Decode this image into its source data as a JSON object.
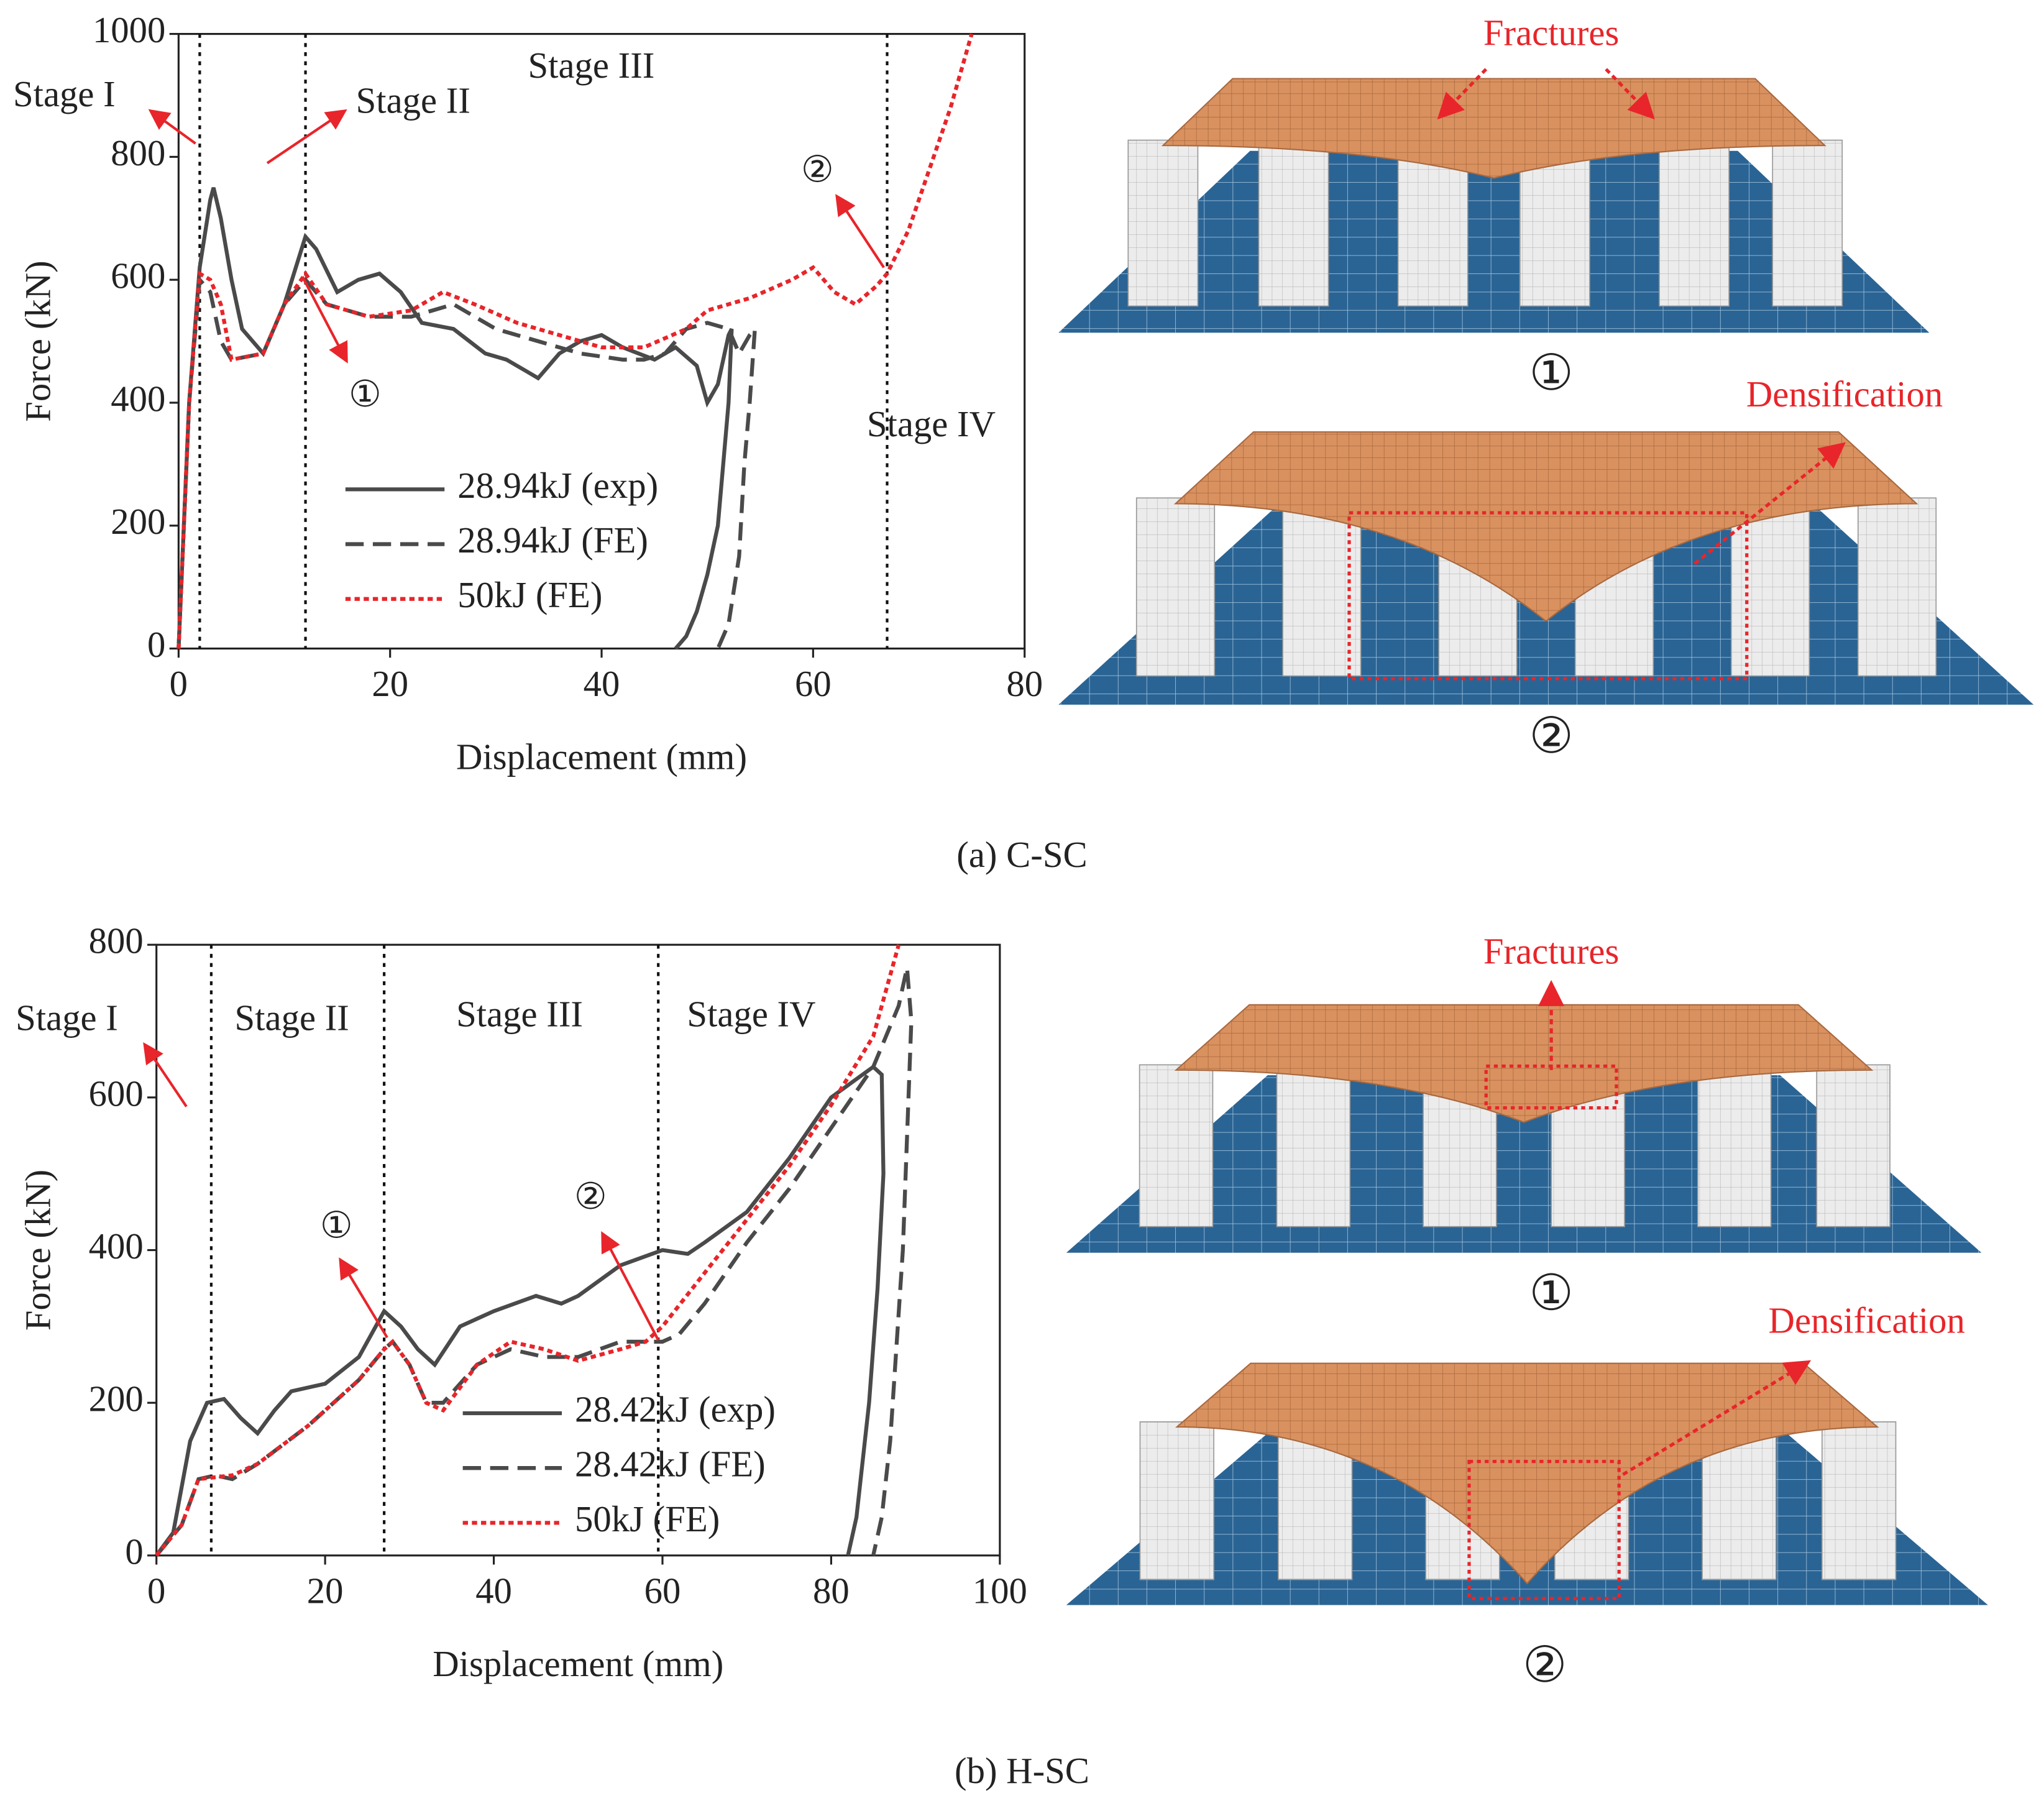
{
  "chart_data": [
    {
      "type": "line",
      "xlabel": "Displacement (mm)",
      "ylabel": "Force (kN)",
      "xlim": [
        0,
        80
      ],
      "ylim": [
        0,
        1000
      ],
      "xticks": [
        0,
        20,
        40,
        60,
        80
      ],
      "yticks": [
        0,
        200,
        400,
        600,
        800,
        1000
      ],
      "stage_lines": [
        2,
        12,
        67
      ],
      "annotations": [
        "Stage I",
        "Stage II",
        "Stage III",
        "Stage IV",
        "①",
        "②"
      ],
      "series": [
        {
          "name": "28.94kJ (exp)",
          "color": "#4a4a4a",
          "dash": "solid",
          "x": [
            0,
            1,
            2,
            3,
            3.3,
            4,
            5,
            6,
            8,
            10,
            12,
            13,
            15,
            17,
            19,
            21,
            23,
            26,
            29,
            31,
            33,
            34,
            36,
            38,
            40,
            42,
            45,
            47,
            49,
            50,
            51,
            52,
            52.3,
            52,
            51.5,
            51,
            50,
            49,
            48,
            47
          ],
          "values": [
            0,
            400,
            620,
            730,
            750,
            700,
            600,
            520,
            480,
            560,
            670,
            650,
            580,
            600,
            610,
            580,
            530,
            520,
            480,
            470,
            450,
            440,
            480,
            500,
            510,
            490,
            470,
            490,
            460,
            400,
            430,
            510,
            520,
            400,
            300,
            200,
            120,
            60,
            20,
            0
          ]
        },
        {
          "name": "28.94kJ (FE)",
          "color": "#4a4a4a",
          "dash": "dashed",
          "x": [
            0,
            1,
            2,
            3,
            4,
            5,
            8,
            10,
            12,
            14,
            18,
            22,
            26,
            30,
            34,
            38,
            42,
            44,
            46,
            48,
            50,
            52,
            53,
            54,
            54.5,
            54,
            53.5,
            53,
            52,
            51
          ],
          "values": [
            0,
            400,
            600,
            580,
            500,
            470,
            480,
            560,
            600,
            560,
            540,
            540,
            560,
            520,
            500,
            480,
            470,
            470,
            480,
            520,
            530,
            520,
            480,
            510,
            520,
            400,
            300,
            150,
            40,
            0
          ]
        },
        {
          "name": "50kJ (FE)",
          "color": "#e8252a",
          "dash": "dotted",
          "x": [
            0,
            1,
            2,
            3,
            4,
            5,
            8,
            10,
            12,
            14,
            18,
            22,
            25,
            28,
            32,
            36,
            40,
            44,
            48,
            50,
            54,
            58,
            60,
            62,
            64,
            66,
            67,
            69,
            71,
            73,
            75
          ],
          "values": [
            0,
            400,
            610,
            600,
            560,
            470,
            480,
            560,
            610,
            560,
            540,
            550,
            580,
            560,
            530,
            510,
            490,
            490,
            520,
            550,
            570,
            600,
            620,
            580,
            560,
            590,
            610,
            680,
            780,
            880,
            1000
          ]
        }
      ]
    },
    {
      "type": "line",
      "xlabel": "Displacement (mm)",
      "ylabel": "Force (kN)",
      "xlim": [
        0,
        100
      ],
      "ylim": [
        0,
        800
      ],
      "xticks": [
        0,
        20,
        40,
        60,
        80,
        100
      ],
      "yticks": [
        0,
        200,
        400,
        600,
        800
      ],
      "stage_lines": [
        6.5,
        27,
        59.5
      ],
      "annotations": [
        "Stage I",
        "Stage II",
        "Stage III",
        "Stage IV",
        "①",
        "②"
      ],
      "series": [
        {
          "name": "28.42kJ (exp)",
          "color": "#4a4a4a",
          "dash": "solid",
          "x": [
            0,
            2,
            4,
            6,
            8,
            10,
            12,
            14,
            16,
            20,
            24,
            27,
            29,
            31,
            33,
            36,
            40,
            45,
            48,
            50,
            55,
            60,
            63,
            65,
            70,
            75,
            80,
            85,
            86,
            86.2,
            85.5,
            84.5,
            83,
            82
          ],
          "values": [
            0,
            30,
            150,
            200,
            205,
            180,
            160,
            190,
            215,
            225,
            260,
            320,
            300,
            270,
            250,
            300,
            320,
            340,
            330,
            340,
            380,
            400,
            395,
            410,
            450,
            520,
            600,
            640,
            630,
            500,
            350,
            200,
            50,
            0
          ]
        },
        {
          "name": "28.42kJ (FE)",
          "color": "#4a4a4a",
          "dash": "dashed",
          "x": [
            0,
            3,
            5,
            7,
            9,
            12,
            18,
            24,
            27,
            28,
            30,
            32,
            34,
            38,
            42,
            46,
            50,
            55,
            60,
            62,
            65,
            70,
            75,
            80,
            85,
            88,
            89,
            89.5,
            88.5,
            87,
            86,
            85
          ],
          "values": [
            0,
            40,
            100,
            105,
            100,
            120,
            170,
            230,
            270,
            280,
            250,
            200,
            200,
            250,
            270,
            260,
            260,
            280,
            280,
            290,
            330,
            410,
            480,
            560,
            640,
            720,
            770,
            700,
            400,
            150,
            50,
            0
          ]
        },
        {
          "name": "50kJ (FE)",
          "color": "#e8252a",
          "dash": "dotted",
          "x": [
            0,
            3,
            5,
            9,
            12,
            18,
            24,
            27,
            28,
            30,
            32,
            34,
            38,
            42,
            46,
            50,
            55,
            58,
            60,
            65,
            70,
            75,
            80,
            85,
            88
          ],
          "values": [
            0,
            40,
            100,
            105,
            120,
            170,
            230,
            270,
            280,
            250,
            200,
            190,
            250,
            280,
            270,
            255,
            270,
            280,
            300,
            370,
            440,
            510,
            590,
            680,
            800
          ]
        }
      ]
    }
  ],
  "panels": [
    {
      "caption": "(a) C-SC",
      "labels": [
        "Fractures",
        "①",
        "Densification",
        "②"
      ]
    },
    {
      "caption": "(b) H-SC",
      "labels": [
        "Fractures",
        "①",
        "Densification",
        "②"
      ]
    }
  ]
}
